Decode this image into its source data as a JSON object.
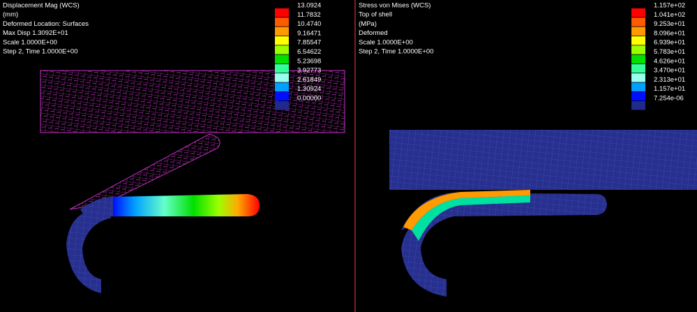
{
  "left_panel": {
    "header": [
      "Displacement Mag (WCS)",
      "(mm)",
      "Deformed Location: Surfaces",
      "Max Disp  1.3092E+01",
      "Scale  1.0000E+00",
      "Step 2, Time  1.0000E+00"
    ],
    "legend": [
      {
        "label": "13.0924",
        "color": "#ff0000"
      },
      {
        "label": "11.7832",
        "color": "#ff5a00"
      },
      {
        "label": "10.4740",
        "color": "#ff9a00"
      },
      {
        "label": "9.16471",
        "color": "#ffff00"
      },
      {
        "label": "7.85547",
        "color": "#9cff00"
      },
      {
        "label": "6.54622",
        "color": "#00e000"
      },
      {
        "label": "5.23698",
        "color": "#33ff99"
      },
      {
        "label": "3.92773",
        "color": "#99ffee"
      },
      {
        "label": "2.61849",
        "color": "#00a0ff"
      },
      {
        "label": "1.30924",
        "color": "#0010ff"
      },
      {
        "label": "0.00000",
        "color": "#1f2a8c"
      }
    ]
  },
  "right_panel": {
    "header": [
      "Stress von Mises (WCS)",
      "Top of shell",
      "(MPa)",
      "Deformed",
      "Scale  1.0000E+00",
      "Step 2, Time  1.0000E+00"
    ],
    "legend": [
      {
        "label": "1.157e+02",
        "color": "#ff0000"
      },
      {
        "label": "1.041e+02",
        "color": "#ff5a00"
      },
      {
        "label": "9.253e+01",
        "color": "#ff9a00"
      },
      {
        "label": "8.096e+01",
        "color": "#ffff00"
      },
      {
        "label": "6.939e+01",
        "color": "#9cff00"
      },
      {
        "label": "5.783e+01",
        "color": "#00e000"
      },
      {
        "label": "4.626e+01",
        "color": "#33ff99"
      },
      {
        "label": "3.470e+01",
        "color": "#99ffee"
      },
      {
        "label": "2.313e+01",
        "color": "#00a0ff"
      },
      {
        "label": "1.157e+01",
        "color": "#0010ff"
      },
      {
        "label": "7.254e-06",
        "color": "#1f2a8c"
      }
    ]
  }
}
